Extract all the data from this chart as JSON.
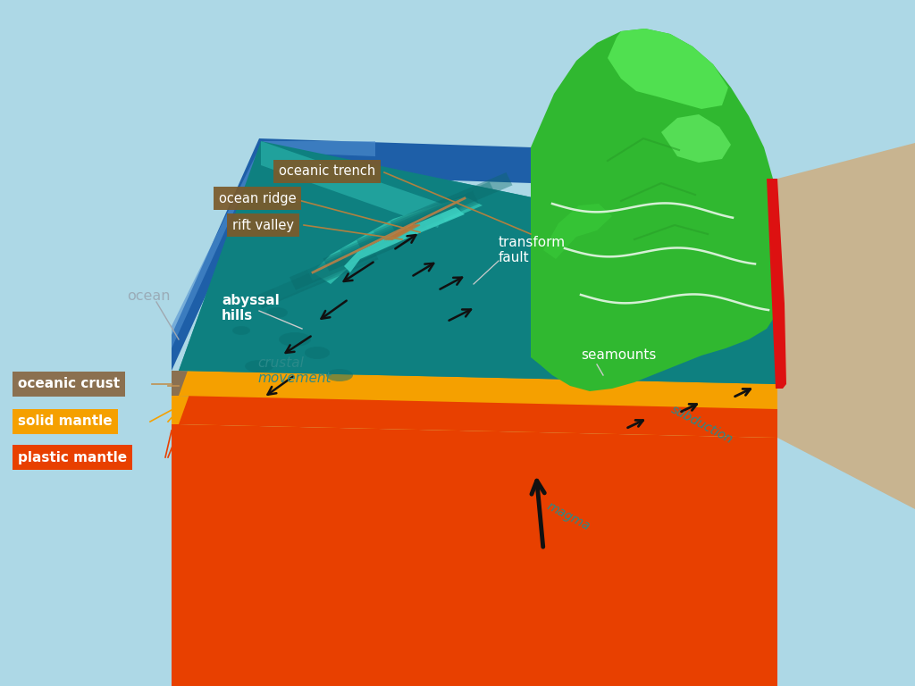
{
  "background": "#add8e6",
  "colors": {
    "ocean_blue_dark": "#1e5fa8",
    "ocean_blue_mid": "#2878c8",
    "ocean_blue_light": "#5090d0",
    "teal_top": "#1a9090",
    "teal_mid": "#0e8080",
    "teal_dark": "#0a6868",
    "teal_lighter": "#28b0a8",
    "ridge_light": "#30c0b0",
    "crust_brown": "#8B7050",
    "solid_mantle": "#F5A000",
    "plastic_mantle": "#E84000",
    "green_bright": "#22cc22",
    "green_mid": "#30b830",
    "green_dark": "#28a028",
    "green_light_hi": "#50e050",
    "beige": "#C8B490",
    "red_lava": "#DD1111",
    "label_brown": "#7B5A2A",
    "arrow_dark": "#111111",
    "text_teal": "#2a8a8a",
    "text_gray": "#9aacb8",
    "line_brown": "#c09050"
  },
  "labels": {
    "oceanic_trench": "oceanic trench",
    "ocean_ridge": "ocean ridge",
    "rift_valley": "rift valley",
    "ocean": "ocean",
    "abyssal_hills": "abyssal\nhills",
    "crustal_movement": "crustal\nmovement",
    "transform_fault": "transform\nfault",
    "seamounts": "seamounts",
    "subduction": "subduction",
    "magma": "magma",
    "oceanic_crust": "oceanic crust",
    "solid_mantle": "solid mantle",
    "plastic_mantle": "plastic mantle"
  }
}
